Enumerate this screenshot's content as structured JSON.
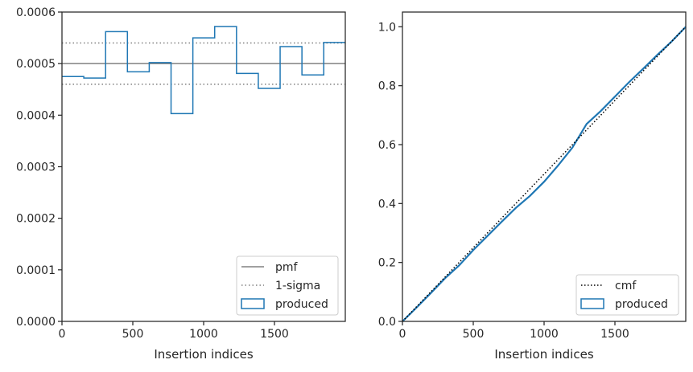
{
  "chart_data": [
    {
      "type": "step",
      "xlabel": "Insertion indices",
      "ylabel": "",
      "xlim": [
        0,
        2000
      ],
      "ylim": [
        0,
        0.0006
      ],
      "xticks": [
        "0",
        "500",
        "1000",
        "1500"
      ],
      "xtick_values": [
        0,
        500,
        1000,
        1500
      ],
      "yticks": [
        "0.0000",
        "0.0001",
        "0.0002",
        "0.0003",
        "0.0004",
        "0.0005",
        "0.0006"
      ],
      "ytick_values": [
        0,
        0.0001,
        0.0002,
        0.0003,
        0.0004,
        0.0005,
        0.0006
      ],
      "pmf": 0.0005,
      "sigma_upper": 0.00054,
      "sigma_lower": 0.00046,
      "bin_edges": [
        0,
        154,
        308,
        462,
        616,
        770,
        924,
        1078,
        1232,
        1386,
        1540,
        1694,
        1848,
        2000
      ],
      "bin_values": [
        0.000475,
        0.000472,
        0.000562,
        0.000484,
        0.000502,
        0.000403,
        0.00055,
        0.000572,
        0.000481,
        0.000452,
        0.000533,
        0.000478,
        0.000541
      ],
      "legend": {
        "position": "lower-right",
        "entries": [
          {
            "label": "pmf",
            "style": "solid",
            "color": "#808080"
          },
          {
            "label": "1-sigma",
            "style": "dotted",
            "color": "#808080"
          },
          {
            "label": "produced",
            "style": "box",
            "color": "#1f77b4"
          }
        ]
      }
    },
    {
      "type": "line",
      "xlabel": "Insertion indices",
      "ylabel": "",
      "xlim": [
        0,
        2000
      ],
      "ylim": [
        0,
        1.05
      ],
      "xticks": [
        "0",
        "500",
        "1000",
        "1500"
      ],
      "xtick_values": [
        0,
        500,
        1000,
        1500
      ],
      "yticks": [
        "0.0",
        "0.2",
        "0.4",
        "0.6",
        "0.8",
        "1.0"
      ],
      "ytick_values": [
        0,
        0.2,
        0.4,
        0.6,
        0.8,
        1.0
      ],
      "cmf": {
        "x": [
          0,
          2000
        ],
        "y": [
          0,
          1.0
        ]
      },
      "produced": {
        "x": [
          0,
          100,
          200,
          300,
          400,
          500,
          600,
          700,
          800,
          900,
          1000,
          1100,
          1200,
          1300,
          1400,
          1500,
          1600,
          1700,
          1800,
          1900,
          2000
        ],
        "y": [
          0,
          0.047,
          0.096,
          0.146,
          0.19,
          0.242,
          0.29,
          0.338,
          0.385,
          0.426,
          0.474,
          0.53,
          0.59,
          0.67,
          0.714,
          0.763,
          0.812,
          0.858,
          0.905,
          0.95,
          1.0
        ]
      },
      "legend": {
        "position": "lower-right",
        "entries": [
          {
            "label": "cmf",
            "style": "dotted",
            "color": "#000000"
          },
          {
            "label": "produced",
            "style": "box",
            "color": "#1f77b4"
          }
        ]
      }
    }
  ]
}
